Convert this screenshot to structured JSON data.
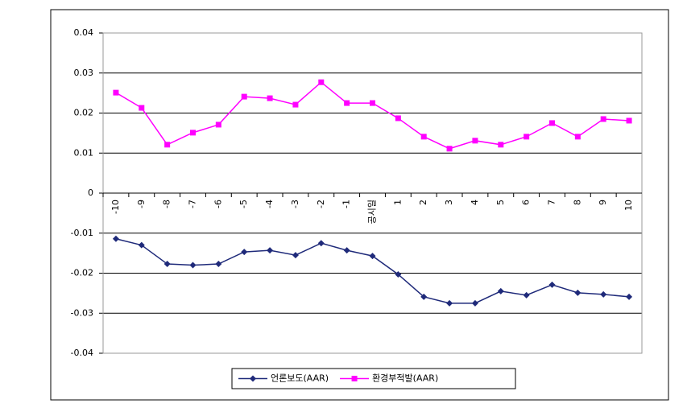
{
  "chart_data": {
    "type": "line",
    "categories": [
      "-10",
      "-9",
      "-8",
      "-7",
      "-6",
      "-5",
      "-4",
      "-3",
      "-2",
      "-1",
      "공시일",
      "1",
      "2",
      "3",
      "4",
      "5",
      "6",
      "7",
      "8",
      "9",
      "10"
    ],
    "series": [
      {
        "name": "언론보도(AAR)",
        "color": "#1f2a7a",
        "marker": "diamond",
        "values": [
          -0.0114,
          -0.013,
          -0.0177,
          -0.018,
          -0.0177,
          -0.0147,
          -0.0143,
          -0.0155,
          -0.0125,
          -0.0143,
          -0.0157,
          -0.0203,
          -0.0259,
          -0.0275,
          -0.0275,
          -0.0245,
          -0.0255,
          -0.0229,
          -0.0249,
          -0.0253,
          -0.0259
        ]
      },
      {
        "name": "환경부적발(AAR)",
        "color": "#ff00ff",
        "marker": "square",
        "values": [
          0.0251,
          0.0213,
          0.0121,
          0.0151,
          0.0171,
          0.0241,
          0.0237,
          0.0221,
          0.0277,
          0.0225,
          0.0225,
          0.0187,
          0.0141,
          0.0111,
          0.0131,
          0.0121,
          0.0141,
          0.0175,
          0.0141,
          0.0185,
          0.0181
        ]
      }
    ],
    "ylim": [
      -0.04,
      0.04
    ],
    "yticks": [
      -0.04,
      -0.03,
      -0.02,
      -0.01,
      0,
      0.01,
      0.02,
      0.03,
      0.04
    ],
    "grid": true,
    "legend": "bottom"
  }
}
